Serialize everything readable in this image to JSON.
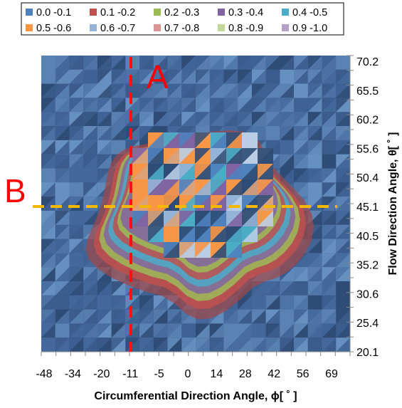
{
  "chart_data": {
    "type": "heatmap",
    "title": "",
    "xlabel": "Circumferential Direction Angle,  ϕ[ ˚  ]",
    "ylabel": "Flow Direction Angle,  θ[ ˚  ]",
    "x_tick_labels": [
      "-48",
      "-34",
      "-20",
      "-11",
      "-5",
      "0",
      "14",
      "28",
      "42",
      "56",
      "69"
    ],
    "y_tick_labels": [
      "70.2",
      "65.5",
      "60.2",
      "55.6",
      "50.4",
      "45.1",
      "40.5",
      "35.2",
      "30.6",
      "25.4",
      "20.1"
    ],
    "legend_position": "top",
    "legend": [
      {
        "label": "0.0 -0.1",
        "color": "#4F81BD"
      },
      {
        "label": "0.1 -0.2",
        "color": "#C0504D"
      },
      {
        "label": "0.2 -0.3",
        "color": "#9BBB59"
      },
      {
        "label": "0.3 -0.4",
        "color": "#8064A2"
      },
      {
        "label": "0.4 -0.5",
        "color": "#4BACC6"
      },
      {
        "label": "0.5 -0.6",
        "color": "#F79646"
      },
      {
        "label": "0.6 -0.7",
        "color": "#95B3D7"
      },
      {
        "label": "0.7 -0.8",
        "color": "#D99694"
      },
      {
        "label": "0.8 -0.9",
        "color": "#C3D69B"
      },
      {
        "label": "0.9 -1.0",
        "color": "#B2A2C7"
      }
    ],
    "annotations": [
      {
        "text": "A",
        "color": "#FF0000",
        "line": "vertical",
        "at_x": "-11",
        "style": "dashed"
      },
      {
        "text": "B",
        "color": "#FF0000",
        "line": "horizontal",
        "at_y": "45.1",
        "line_color": "#F5B800",
        "style": "dashed"
      }
    ]
  }
}
